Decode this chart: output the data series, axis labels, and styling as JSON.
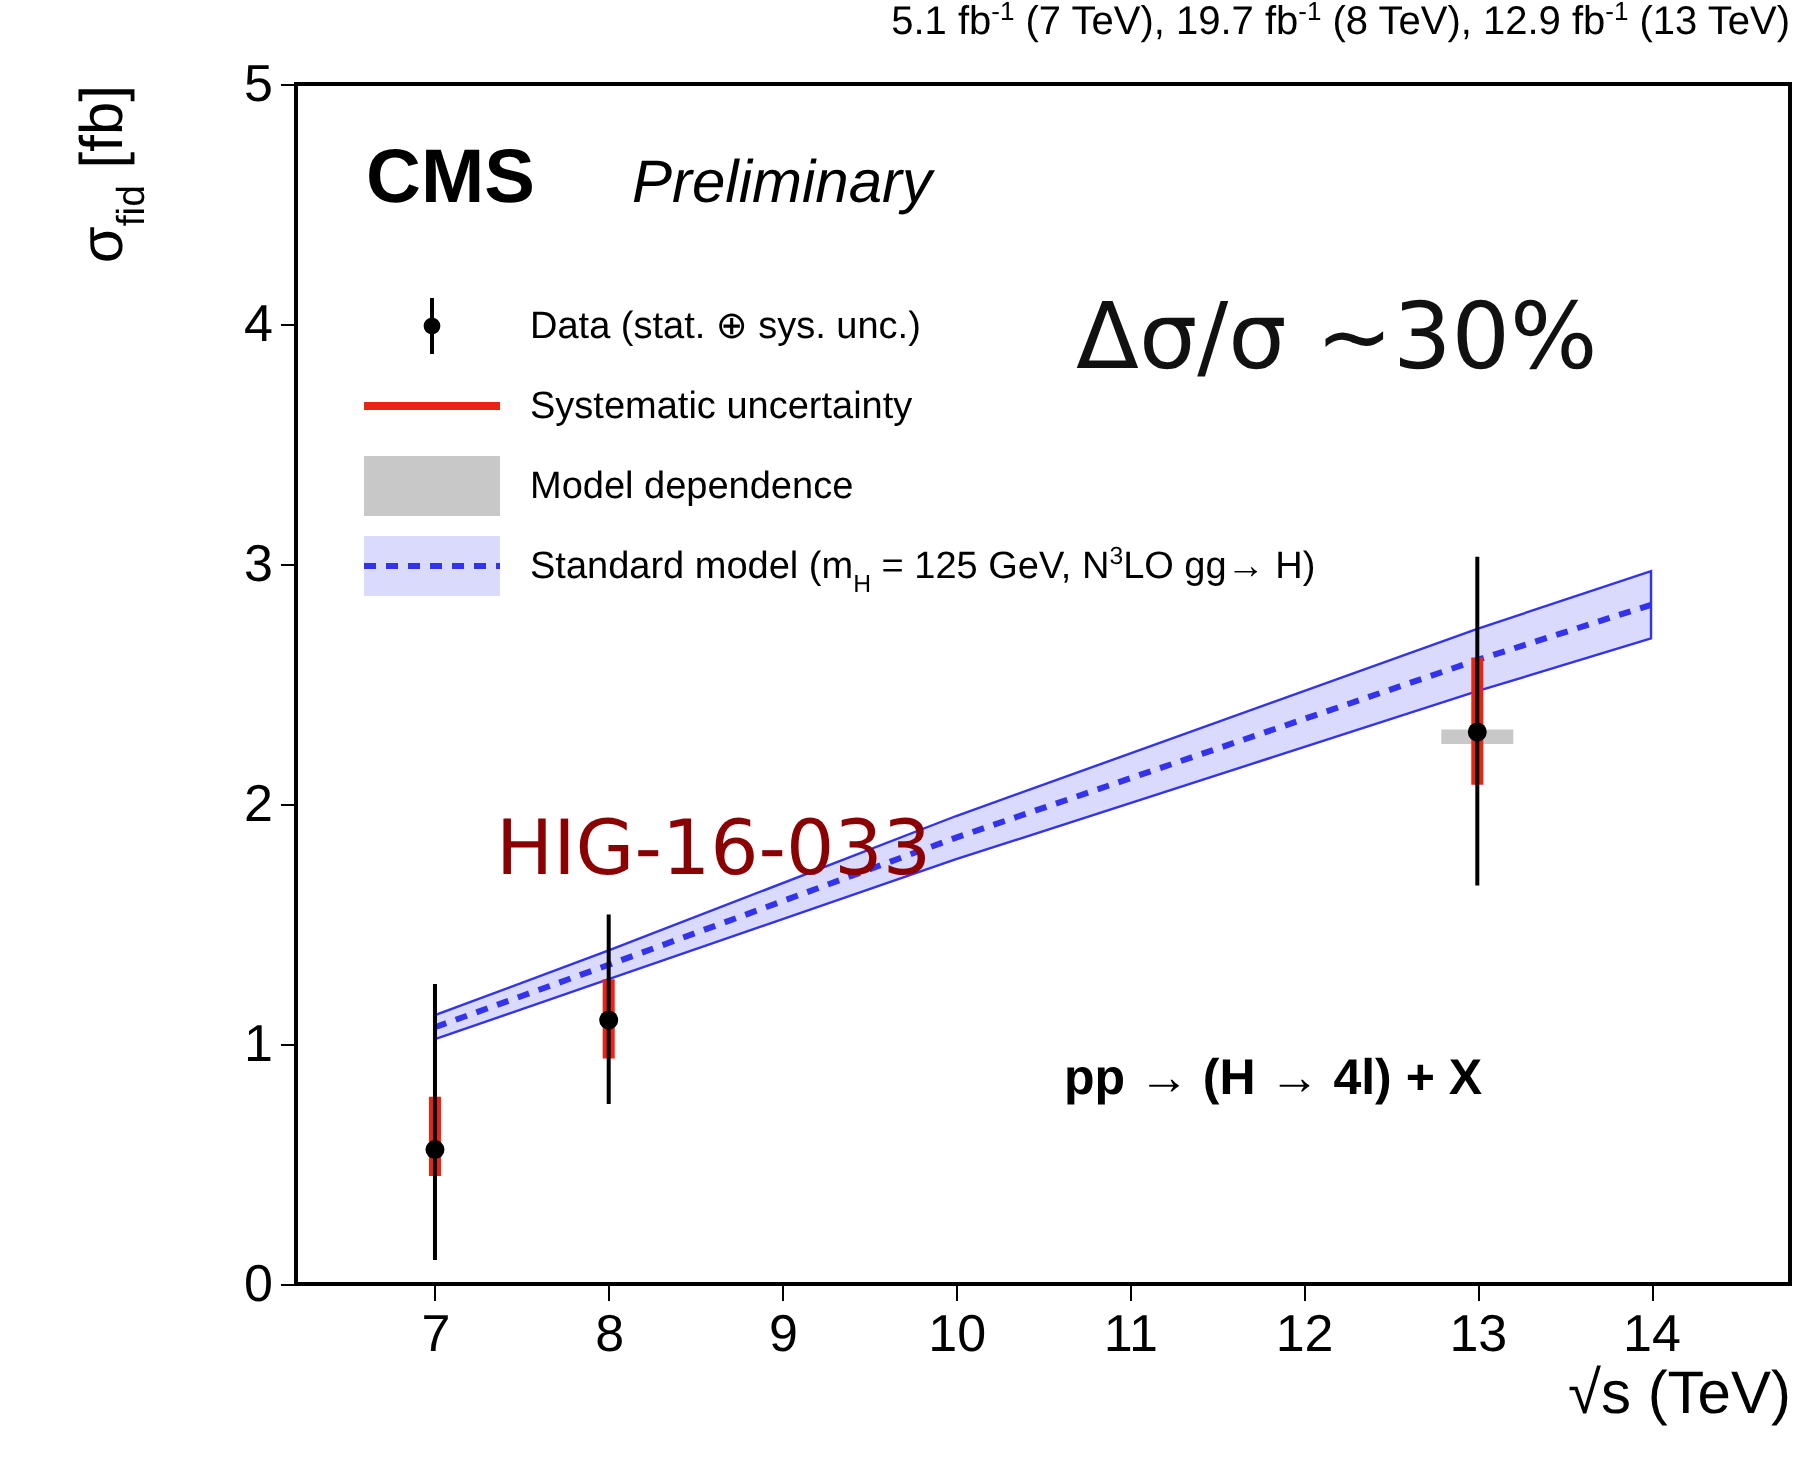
{
  "chart_data": {
    "type": "scatter",
    "title": "5.1 fb$^{-1}$ (7 TeV), 19.7 fb$^{-1}$ (8 TeV), 12.9 fb$^{-1}$ (13 TeV)",
    "xlabel": "√s (TeV)",
    "ylabel": "σ$_{fid}$ [fb]",
    "annotations": [
      "CMS",
      "Preliminary",
      "Δσ/σ ~30%",
      "HIG-16-033",
      "pp → (H → 4l) + X"
    ],
    "x": [
      7,
      8,
      13
    ],
    "series": [
      {
        "name": "Standard model (m$_{H}$ = 125 GeV, N$^{3}$LO gg→ H)",
        "type": "line",
        "color": "#3333ee",
        "line_style": "dashed",
        "x": [
          7,
          8,
          10,
          13,
          14
        ],
        "values": [
          1.07,
          1.33,
          1.86,
          2.6,
          2.83
        ],
        "lower": [
          1.02,
          1.27,
          1.77,
          2.47,
          2.69
        ],
        "upper": [
          1.12,
          1.39,
          1.95,
          2.73,
          2.97
        ]
      },
      {
        "name": "Model dependence",
        "type": "bar",
        "color": "#c8c8c8",
        "values": [
          null,
          null,
          0.06
        ],
        "base": [
          null,
          null,
          2.25
        ]
      },
      {
        "name": "Systematic uncertainty",
        "type": "bar",
        "color": "#ee2211",
        "values": [
          0.33,
          0.33,
          0.53
        ],
        "base": [
          0.45,
          0.94,
          2.08
        ]
      },
      {
        "name": "Data (stat. ⊕ sys. unc.)",
        "color": "#000000",
        "marker": "circle",
        "values": [
          0.56,
          1.1,
          2.3
        ],
        "errors": [
          [
            0.1,
            1.25
          ],
          [
            0.75,
            1.54
          ],
          [
            1.66,
            3.03
          ]
        ]
      }
    ],
    "xlim": [
      6.2,
      14.8
    ],
    "xticks": [
      7,
      8,
      9,
      10,
      11,
      12,
      13,
      14
    ],
    "ylim": [
      0,
      5
    ],
    "yticks": [
      0,
      1,
      2,
      3,
      4,
      5
    ],
    "legend": "top left"
  }
}
